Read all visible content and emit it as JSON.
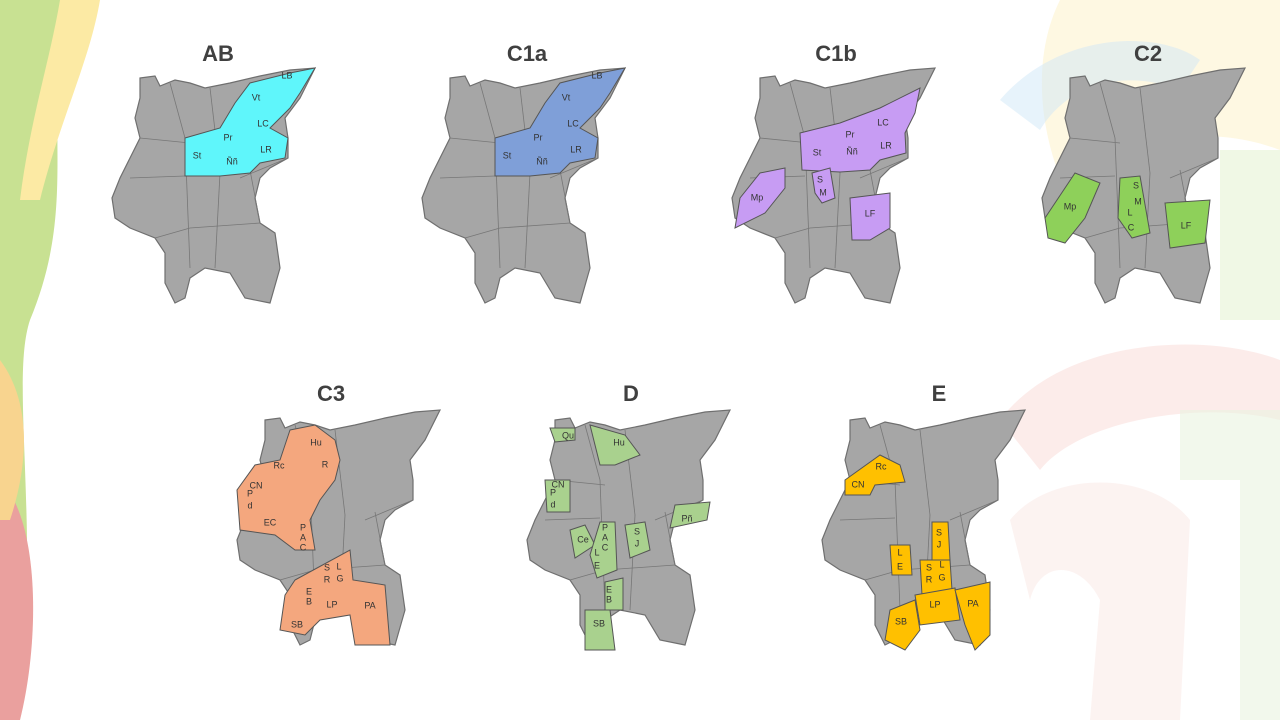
{
  "panels": [
    {
      "title": "AB",
      "color": "#5ff6fb",
      "labels": [
        "LB",
        "Vt",
        "LC",
        "Pr",
        "St",
        "Ññ",
        "LR"
      ]
    },
    {
      "title": "C1a",
      "color": "#7f9fd8",
      "labels": [
        "LB",
        "Vt",
        "LC",
        "Pr",
        "St",
        "Ññ",
        "LR"
      ]
    },
    {
      "title": "C1b",
      "color": "#c79cf3",
      "labels": [
        "LC",
        "Pr",
        "St",
        "Ññ",
        "LR",
        "S",
        "M",
        "Mp",
        "LF"
      ]
    },
    {
      "title": "C2",
      "color": "#8ed05a",
      "labels": [
        "S",
        "M",
        "L",
        "C",
        "Mp",
        "LF"
      ]
    },
    {
      "title": "C3",
      "color": "#f4a77e",
      "labels": [
        "Hu",
        "Rc",
        "R",
        "CN",
        "P",
        "d",
        "EC",
        "P",
        "A",
        "C",
        "S",
        "R",
        "L",
        "G",
        "E",
        "B",
        "LP",
        "PA",
        "SB"
      ]
    },
    {
      "title": "D",
      "color": "#a9d18e",
      "labels": [
        "Qu",
        "Hu",
        "CN",
        "P",
        "d",
        "Ce",
        "P",
        "A",
        "C",
        "S",
        "J",
        "L",
        "E",
        "Pñ",
        "E",
        "B",
        "SB"
      ]
    },
    {
      "title": "E",
      "color": "#ffc000",
      "labels": [
        "Rc",
        "CN",
        "S",
        "J",
        "L",
        "E",
        "S",
        "R",
        "L",
        "G",
        "LP",
        "PA",
        "SB"
      ]
    }
  ]
}
